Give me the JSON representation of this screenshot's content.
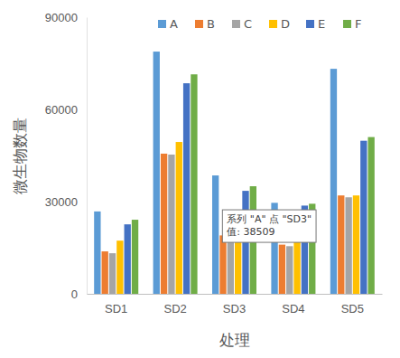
{
  "chart_data": {
    "type": "bar",
    "x_label": "处理",
    "y_label": "微生物数量",
    "categories": [
      "SD1",
      "SD2",
      "SD3",
      "SD4",
      "SD5"
    ],
    "series": [
      {
        "name": "A",
        "color": "#5b9bd5",
        "values": [
          26800,
          78800,
          38509,
          29600,
          73200
        ]
      },
      {
        "name": "B",
        "color": "#ed7d31",
        "values": [
          13800,
          45600,
          19000,
          16000,
          32000
        ]
      },
      {
        "name": "C",
        "color": "#a5a5a5",
        "values": [
          13200,
          45300,
          18500,
          15500,
          31400
        ]
      },
      {
        "name": "D",
        "color": "#ffc000",
        "values": [
          17300,
          49400,
          23200,
          17000,
          32000
        ]
      },
      {
        "name": "E",
        "color": "#4472c4",
        "values": [
          22600,
          68500,
          33500,
          28700,
          49800
        ]
      },
      {
        "name": "F",
        "color": "#70ad47",
        "values": [
          24100,
          71400,
          35000,
          29300,
          51000
        ]
      }
    ],
    "ylim": [
      0,
      90000
    ],
    "yticks": [
      0,
      30000,
      60000,
      90000
    ],
    "grid": false,
    "legend": "top",
    "annotations": [
      "系列 \"A\" 点 \"SD3\"",
      "值: 38509"
    ]
  }
}
